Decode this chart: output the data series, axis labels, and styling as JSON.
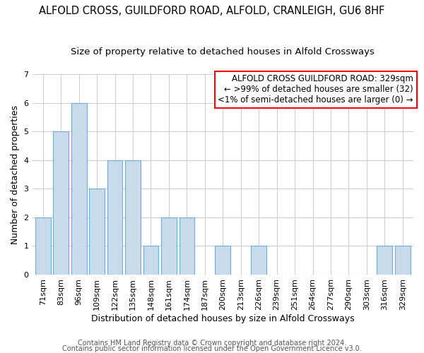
{
  "title": "ALFOLD CROSS, GUILDFORD ROAD, ALFOLD, CRANLEIGH, GU6 8HF",
  "subtitle": "Size of property relative to detached houses in Alfold Crossways",
  "xlabel": "Distribution of detached houses by size in Alfold Crossways",
  "ylabel": "Number of detached properties",
  "categories": [
    "71sqm",
    "83sqm",
    "96sqm",
    "109sqm",
    "122sqm",
    "135sqm",
    "148sqm",
    "161sqm",
    "174sqm",
    "187sqm",
    "200sqm",
    "213sqm",
    "226sqm",
    "239sqm",
    "251sqm",
    "264sqm",
    "277sqm",
    "290sqm",
    "303sqm",
    "316sqm",
    "329sqm"
  ],
  "values": [
    2,
    5,
    6,
    3,
    4,
    4,
    1,
    2,
    2,
    0,
    1,
    0,
    1,
    0,
    0,
    0,
    0,
    0,
    0,
    1,
    1
  ],
  "bar_color": "#c9daea",
  "bar_edge_color": "#6baed6",
  "ylim": [
    0,
    7
  ],
  "yticks": [
    0,
    1,
    2,
    3,
    4,
    5,
    6,
    7
  ],
  "annotation_box_text": "ALFOLD CROSS GUILDFORD ROAD: 329sqm\n← >99% of detached houses are smaller (32)\n<1% of semi-detached houses are larger (0) →",
  "box_color": "white",
  "box_edge_color": "red",
  "footer_line1": "Contains HM Land Registry data © Crown copyright and database right 2024.",
  "footer_line2": "Contains public sector information licensed under the Open Government Licence v3.0.",
  "title_fontsize": 10.5,
  "subtitle_fontsize": 9.5,
  "axis_label_fontsize": 9,
  "tick_fontsize": 8,
  "annotation_fontsize": 8.5,
  "footer_fontsize": 7,
  "grid_color": "#cccccc",
  "background_color": "#ffffff"
}
